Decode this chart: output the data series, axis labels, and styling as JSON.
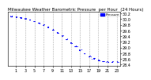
{
  "title": "Milwaukee Weather Barometric Pressure  per Hour  (24 Hours)",
  "x_values": [
    0,
    1,
    2,
    3,
    4,
    5,
    6,
    7,
    8,
    9,
    10,
    11,
    12,
    13,
    14,
    15,
    16,
    17,
    18,
    19,
    20,
    21,
    22,
    23
  ],
  "y_values": [
    30.1,
    30.08,
    30.05,
    30.02,
    29.98,
    29.93,
    29.87,
    29.8,
    29.72,
    29.63,
    29.53,
    29.42,
    29.3,
    29.17,
    29.05,
    28.92,
    28.8,
    28.7,
    28.62,
    28.56,
    28.52,
    28.5,
    28.5,
    28.51
  ],
  "marker_color": "#0000ff",
  "grid_color": "#888888",
  "bg_color": "#ffffff",
  "ylim_min": 28.35,
  "ylim_max": 30.25,
  "xlim_min": -0.8,
  "xlim_max": 23.8,
  "ytick_values": [
    28.4,
    28.6,
    28.8,
    29.0,
    29.2,
    29.4,
    29.6,
    29.8,
    30.0,
    30.2
  ],
  "ytick_labels": [
    "28.4",
    "28.6",
    "28.8",
    "29.0",
    "29.2",
    "29.4",
    "29.6",
    "29.8",
    "30.0",
    "30.2"
  ],
  "xtick_values": [
    1,
    3,
    5,
    7,
    9,
    11,
    13,
    15,
    17,
    19,
    21,
    23
  ],
  "xtick_labels": [
    "1",
    "3",
    "5",
    "7",
    "9",
    "11",
    "13",
    "15",
    "17",
    "19",
    "21",
    "23"
  ],
  "grid_xtick_values": [
    1,
    3,
    5,
    7,
    9,
    11,
    13,
    15,
    17,
    19,
    21,
    23
  ],
  "legend_label": "Pressure",
  "legend_color": "#0000ff",
  "title_fontsize": 4.0,
  "tick_fontsize": 3.5,
  "marker_size": 1.8
}
